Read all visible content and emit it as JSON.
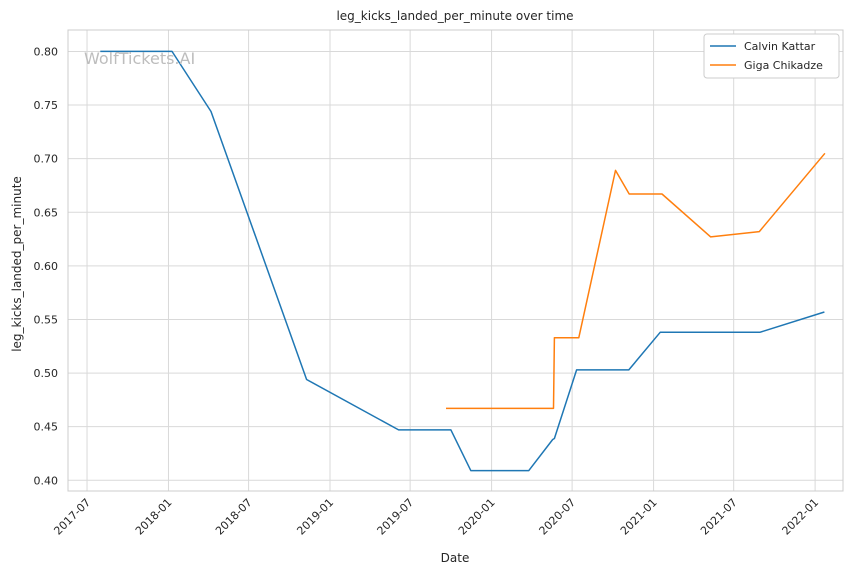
{
  "chart_data": {
    "type": "line",
    "title": "leg_kicks_landed_per_minute over time",
    "xlabel": "Date",
    "ylabel": "leg_kicks_landed_per_minute",
    "watermark": "WolfTickets.AI",
    "x_range": [
      "2017-05-19",
      "2022-03-05"
    ],
    "ylim": [
      0.39,
      0.82
    ],
    "x_ticks": [
      "2017-07",
      "2018-01",
      "2018-07",
      "2019-01",
      "2019-07",
      "2020-01",
      "2020-07",
      "2021-01",
      "2021-07",
      "2022-01"
    ],
    "y_ticks": [
      "0.40",
      "0.45",
      "0.50",
      "0.55",
      "0.60",
      "0.65",
      "0.70",
      "0.75",
      "0.80"
    ],
    "grid": true,
    "legend_position": "top-right",
    "colors": {
      "Calvin Kattar": "#1f77b4",
      "Giga Chikadze": "#ff7f0e",
      "grid": "#d9d9d9",
      "axes": "#cccccc",
      "watermark": "#bdbdbd"
    },
    "series": [
      {
        "name": "Calvin Kattar",
        "x": [
          "2017-07-31",
          "2018-01-09",
          "2018-04-07",
          "2018-11-09",
          "2019-06-05",
          "2019-10-01",
          "2019-11-15",
          "2020-03-25",
          "2020-05-18",
          "2020-05-22",
          "2020-07-11",
          "2020-11-06",
          "2021-01-16",
          "2021-08-29",
          "2022-01-22"
        ],
        "values": [
          0.8,
          0.8,
          0.744,
          0.494,
          0.447,
          0.447,
          0.409,
          0.409,
          0.438,
          0.439,
          0.503,
          0.503,
          0.538,
          0.538,
          0.557
        ]
      },
      {
        "name": "Giga Chikadze",
        "x": [
          "2019-09-20",
          "2020-05-20",
          "2020-05-22",
          "2020-07-16",
          "2020-10-07",
          "2020-11-07",
          "2021-01-20",
          "2021-05-10",
          "2021-08-28",
          "2022-01-23"
        ],
        "values": [
          0.467,
          0.467,
          0.533,
          0.533,
          0.689,
          0.667,
          0.667,
          0.627,
          0.632,
          0.705
        ]
      }
    ]
  }
}
